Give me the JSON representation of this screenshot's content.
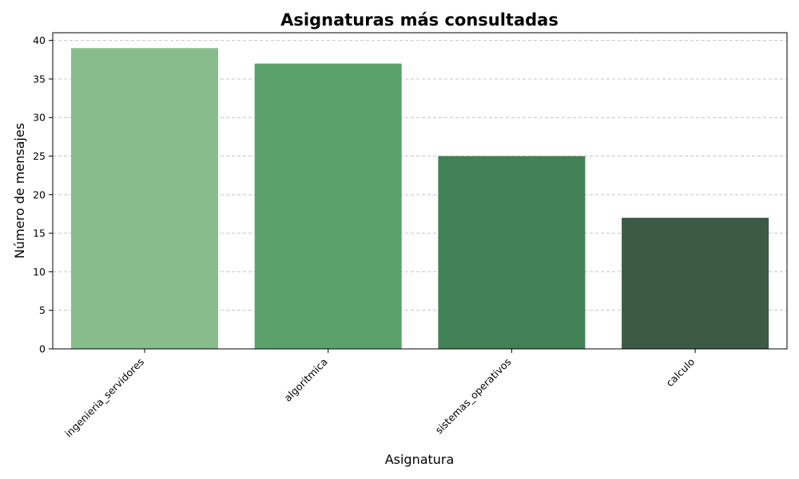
{
  "chart_data": {
    "type": "bar",
    "title": "Asignaturas más consultadas",
    "xlabel": "Asignatura",
    "ylabel": "Número de mensajes",
    "categories": [
      "ingenieria_servidores",
      "algoritmica",
      "sistemas_operativos",
      "calculo"
    ],
    "values": [
      39,
      37,
      25,
      17
    ],
    "colors": [
      "#88bc8c",
      "#5ba16c",
      "#428155",
      "#3b5b45"
    ],
    "ylim": [
      0,
      41
    ],
    "yticks": [
      0,
      5,
      10,
      15,
      20,
      25,
      30,
      35,
      40
    ],
    "grid": "y-dashed",
    "legend": "none"
  }
}
